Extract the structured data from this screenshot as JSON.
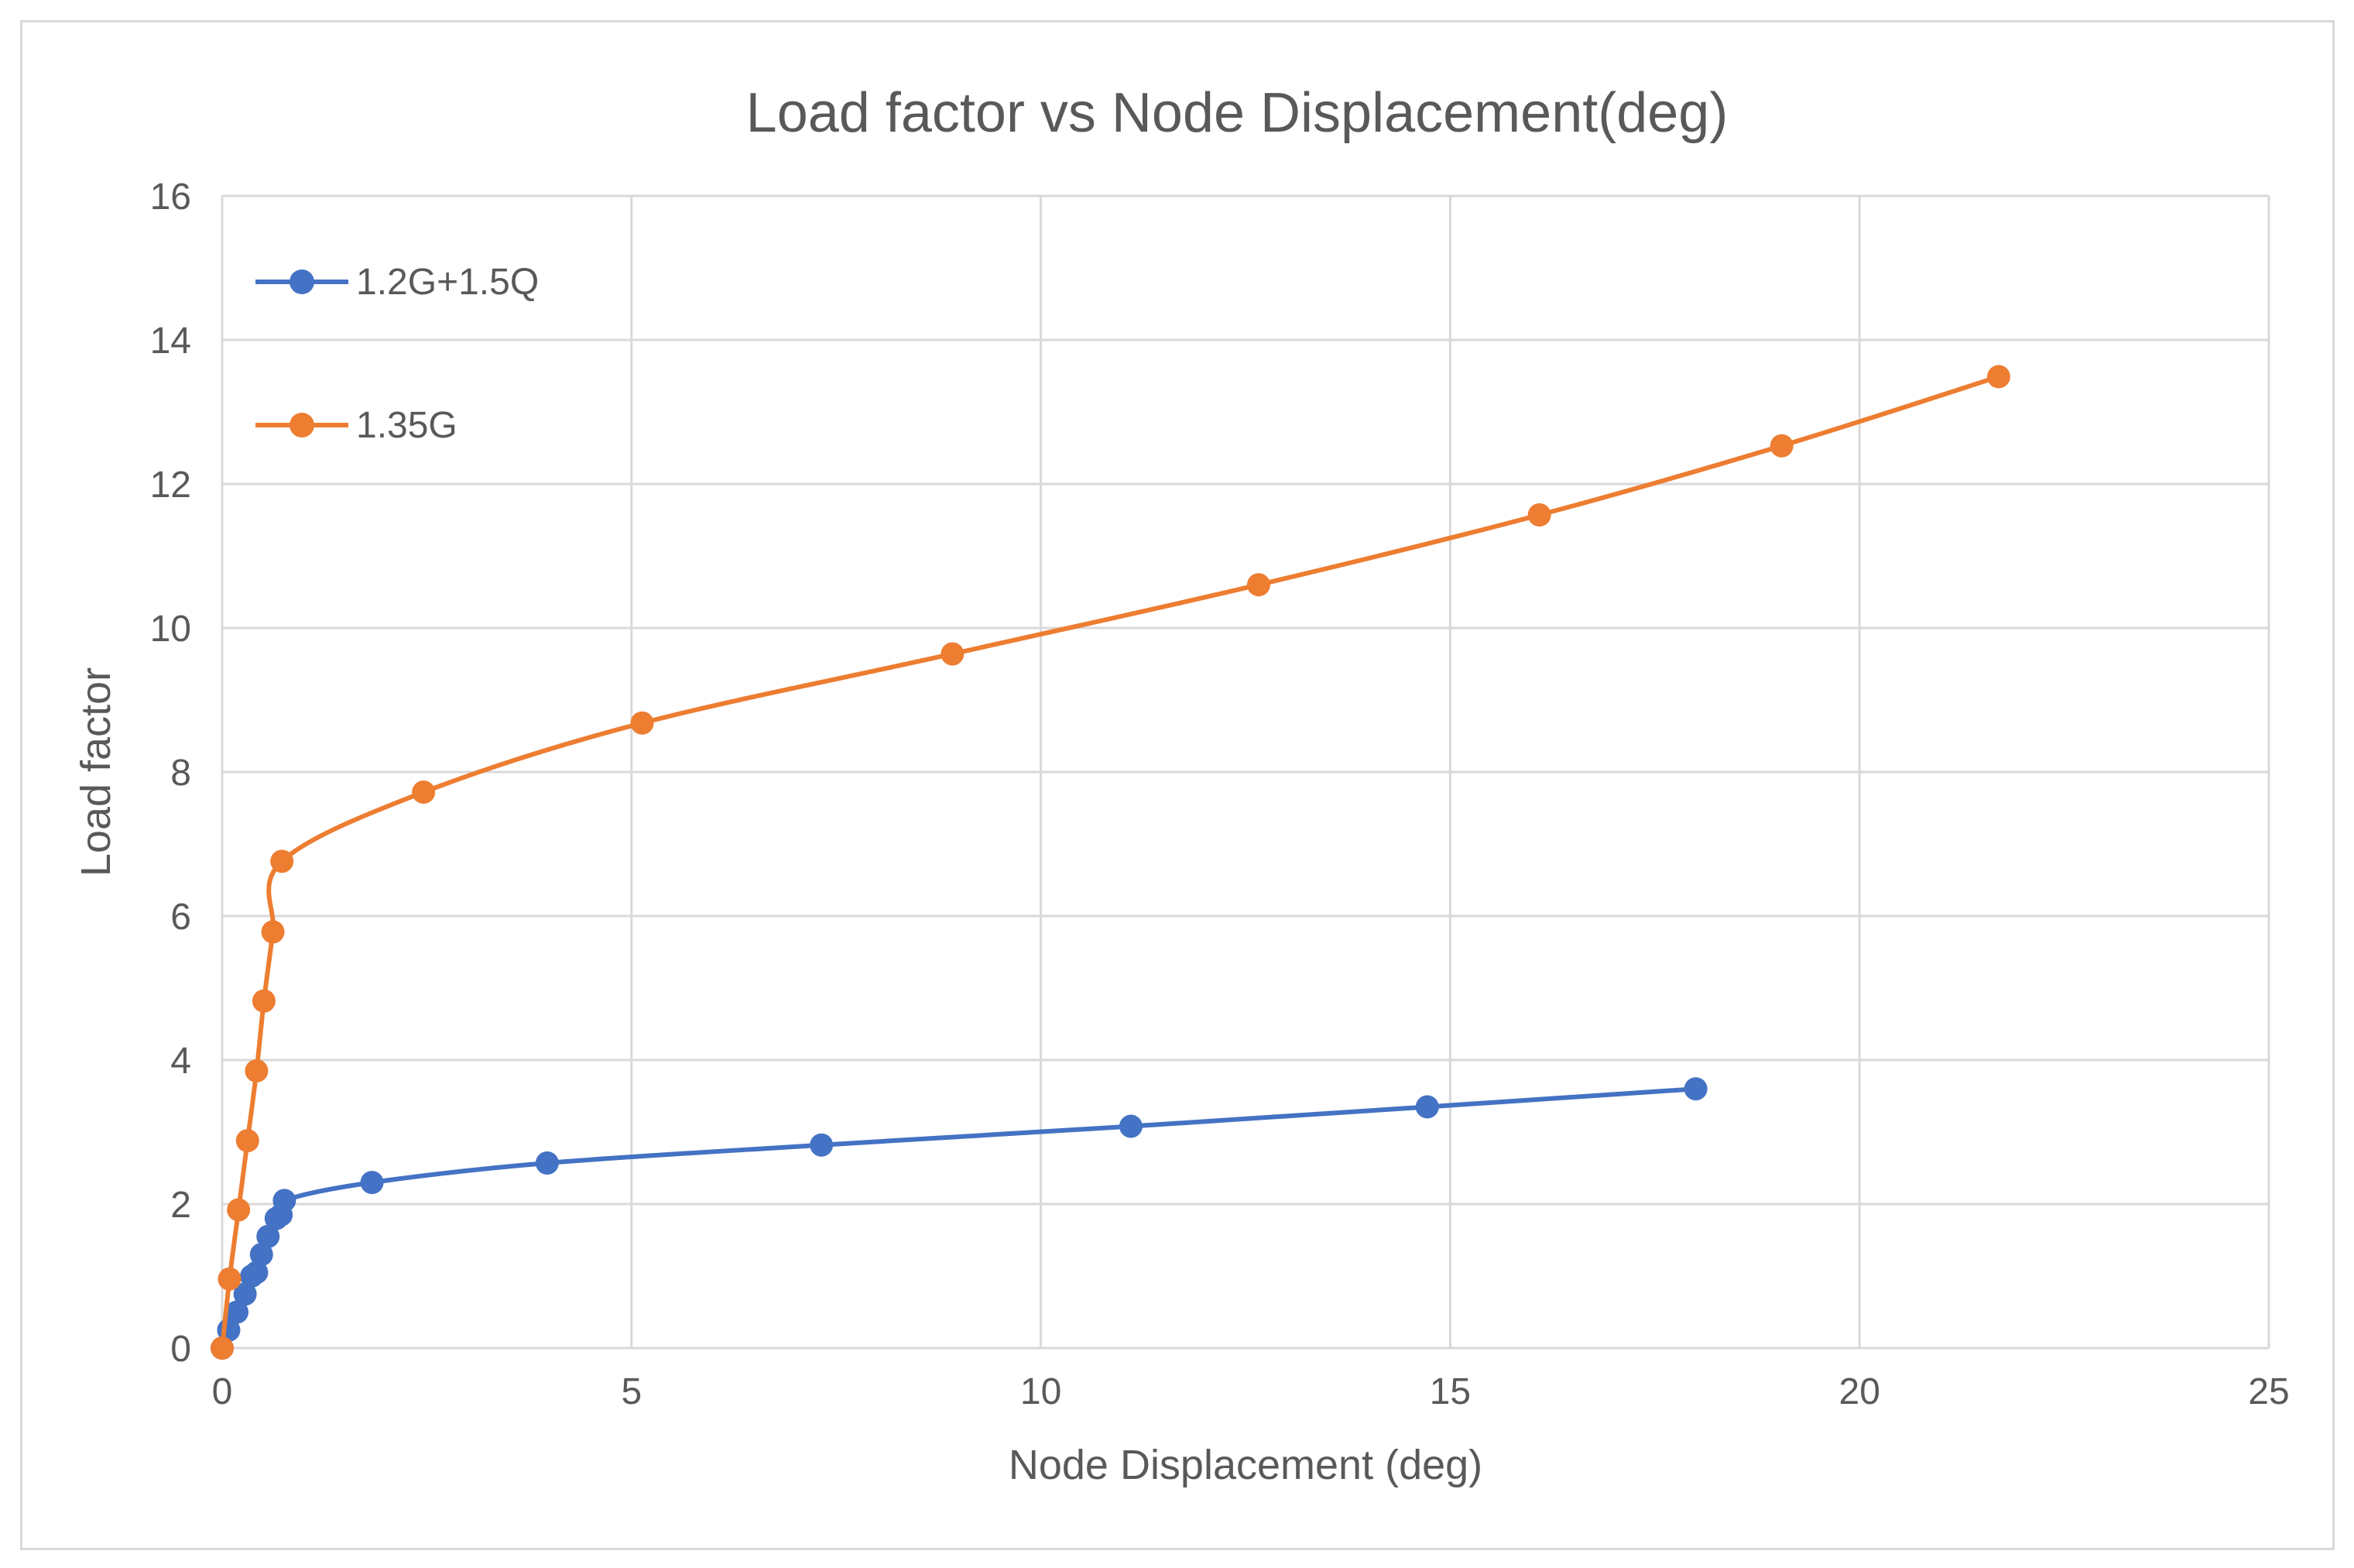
{
  "chart_data": {
    "type": "line",
    "title": "Load factor vs Node Displacement(deg)",
    "xlabel": "Node Displacement (deg)",
    "ylabel": "Load factor",
    "xlim": [
      0,
      25
    ],
    "ylim": [
      0,
      16
    ],
    "xticks": [
      0,
      5,
      10,
      15,
      20,
      25
    ],
    "yticks": [
      0,
      2,
      4,
      6,
      8,
      10,
      12,
      14,
      16
    ],
    "grid": true,
    "legend_position": "top-left",
    "series": [
      {
        "name": "1.2G+1.5Q",
        "color": "#4472c4",
        "x": [
          0,
          0.08,
          0.18,
          0.28,
          0.36,
          0.42,
          0.48,
          0.56,
          0.66,
          0.72,
          0.76,
          1.83,
          3.97,
          7.32,
          11.1,
          14.72,
          18.0
        ],
        "y": [
          0,
          0.25,
          0.5,
          0.75,
          1.0,
          1.05,
          1.3,
          1.55,
          1.8,
          1.85,
          2.05,
          2.3,
          2.57,
          2.82,
          3.08,
          3.35,
          3.6
        ]
      },
      {
        "name": "1.35G",
        "color": "#ed7d31",
        "x": [
          0,
          0.09,
          0.2,
          0.31,
          0.42,
          0.51,
          0.62,
          0.73,
          2.46,
          5.13,
          8.92,
          12.66,
          16.09,
          19.05,
          21.7
        ],
        "y": [
          0,
          0.96,
          1.92,
          2.88,
          3.85,
          4.82,
          5.78,
          6.76,
          7.72,
          8.68,
          9.64,
          10.6,
          11.57,
          12.53,
          13.49
        ]
      }
    ]
  }
}
